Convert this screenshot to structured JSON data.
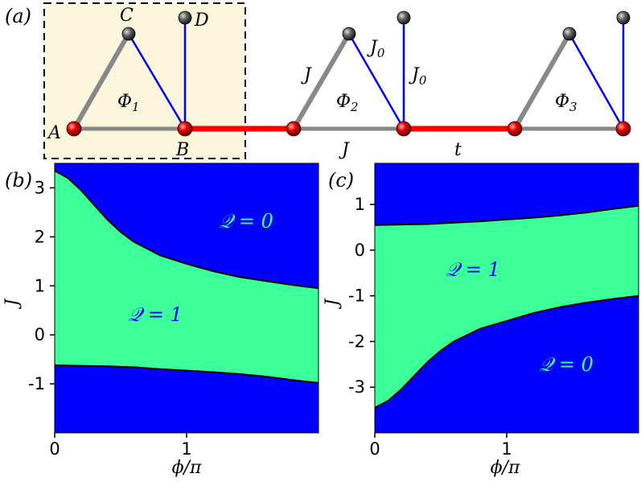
{
  "panel_a": {
    "label": "(a)",
    "site_labels": {
      "A": "A",
      "B": "B",
      "C": "C",
      "D": "D"
    },
    "flux_labels": [
      "Φ",
      "Φ",
      "Φ"
    ],
    "flux_subscripts": [
      "1",
      "2",
      "3"
    ],
    "bond_labels": {
      "J_left": "J",
      "J_bottom": "J",
      "J0_a": "J",
      "J0_b": "J",
      "J0_sub": "0",
      "t": "t"
    },
    "colors": {
      "intra_bond": "#888888",
      "inter_bond": "#ff0000",
      "dangling_bond": "#0000ff",
      "site_red": "#d40000",
      "site_gray": "#444444",
      "unit_cell_fill": "#fcf6dc"
    }
  },
  "chart_data": [
    {
      "type": "heatmap",
      "panel": "(b)",
      "xlabel": "ϕ/π",
      "ylabel": "J",
      "xlim": [
        0,
        2
      ],
      "ylim": [
        -2,
        3.5
      ],
      "xticks": [
        "0",
        "1"
      ],
      "yticks": [
        "3",
        "2",
        "1",
        "0",
        "-1"
      ],
      "ytick_values": [
        3,
        2,
        1,
        0,
        -1
      ],
      "xtick_values": [
        0,
        1
      ],
      "regions": [
        {
          "label": "𝒬 = 0",
          "color": "#0000ff",
          "text_color": "#3dff99"
        },
        {
          "label": "𝒬 = 1",
          "color": "#3dff99",
          "text_color": "#0000ff"
        }
      ],
      "upper_boundary": {
        "x": [
          0,
          0.1,
          0.2,
          0.3,
          0.4,
          0.5,
          0.6,
          0.8,
          1.0,
          1.2,
          1.4,
          1.6,
          1.8,
          2.0
        ],
        "y": [
          3.35,
          3.2,
          2.95,
          2.65,
          2.35,
          2.1,
          1.9,
          1.62,
          1.45,
          1.3,
          1.18,
          1.1,
          1.02,
          0.95
        ]
      },
      "lower_boundary": {
        "x": [
          0,
          0.2,
          0.4,
          0.6,
          0.8,
          1.0,
          1.2,
          1.4,
          1.6,
          1.8,
          2.0
        ],
        "y": [
          -0.62,
          -0.63,
          -0.64,
          -0.66,
          -0.7,
          -0.73,
          -0.76,
          -0.8,
          -0.85,
          -0.92,
          -0.98
        ]
      }
    },
    {
      "type": "heatmap",
      "panel": "(c)",
      "xlabel": "ϕ/π",
      "ylabel": "J",
      "xlim": [
        0,
        2
      ],
      "ylim": [
        -4,
        1.9
      ],
      "xticks": [
        "0",
        "1"
      ],
      "yticks": [
        "1",
        "0",
        "-1",
        "-2",
        "-3"
      ],
      "ytick_values": [
        1,
        0,
        -1,
        -2,
        -3
      ],
      "xtick_values": [
        0,
        1
      ],
      "regions": [
        {
          "label": "𝒬 = 1",
          "color": "#3dff99",
          "text_color": "#0000ff"
        },
        {
          "label": "𝒬 = 0",
          "color": "#0000ff",
          "text_color": "#3dff99"
        }
      ],
      "upper_boundary": {
        "x": [
          0,
          0.2,
          0.4,
          0.6,
          0.8,
          1.0,
          1.2,
          1.4,
          1.6,
          1.8,
          2.0
        ],
        "y": [
          0.55,
          0.56,
          0.57,
          0.6,
          0.63,
          0.67,
          0.71,
          0.76,
          0.82,
          0.9,
          0.97
        ]
      },
      "lower_boundary": {
        "x": [
          0,
          0.1,
          0.2,
          0.3,
          0.4,
          0.5,
          0.6,
          0.8,
          1.0,
          1.2,
          1.4,
          1.6,
          1.8,
          2.0
        ],
        "y": [
          -3.45,
          -3.3,
          -3.05,
          -2.75,
          -2.45,
          -2.2,
          -2.0,
          -1.72,
          -1.55,
          -1.38,
          -1.25,
          -1.15,
          -1.07,
          -1.0
        ]
      }
    }
  ]
}
